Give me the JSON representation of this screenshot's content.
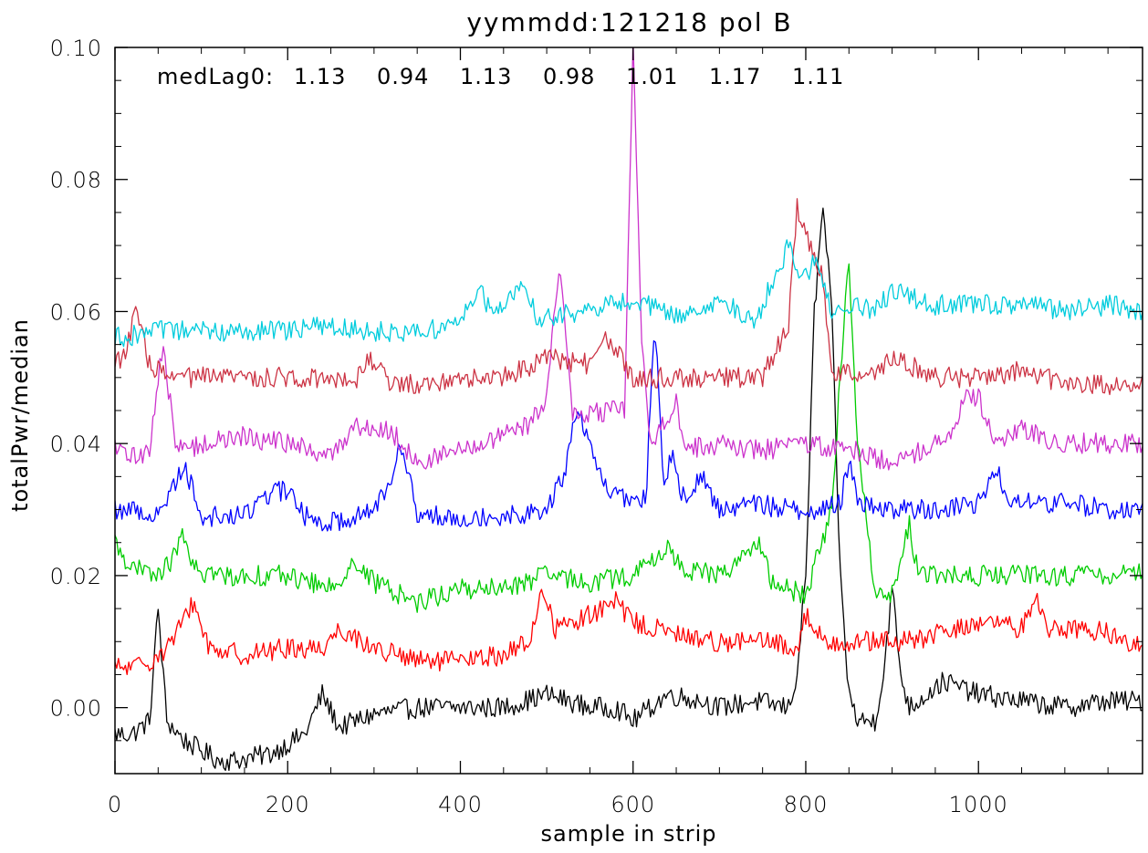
{
  "chart_data": {
    "type": "line",
    "title": "yymmdd:121218 pol B",
    "xlabel": "sample in strip",
    "ylabel": "totalPwr/median",
    "xlim": [
      0,
      1190
    ],
    "ylim": [
      -0.01,
      0.1
    ],
    "xticks": [
      0,
      200,
      400,
      600,
      800,
      1000
    ],
    "xtick_labels": [
      "0",
      "200",
      "400",
      "600",
      "800",
      "1000"
    ],
    "yticks": [
      0.0,
      0.02,
      0.04,
      0.06,
      0.08,
      0.1
    ],
    "ytick_labels": [
      "0.00",
      "0.02",
      "0.04",
      "0.06",
      "0.08",
      "0.10"
    ],
    "grid": false,
    "annotation": {
      "label": "medLag0:",
      "values": [
        "1.13",
        "0.94",
        "1.13",
        "0.98",
        "1.01",
        "1.17",
        "1.11"
      ]
    },
    "series": [
      {
        "color": "#000000",
        "x": [
          0,
          20,
          40,
          50,
          60,
          80,
          120,
          140,
          180,
          220,
          240,
          260,
          300,
          350,
          400,
          450,
          500,
          550,
          580,
          600,
          620,
          640,
          680,
          700,
          740,
          780,
          790,
          800,
          810,
          820,
          830,
          840,
          850,
          860,
          880,
          890,
          900,
          910,
          920,
          940,
          960,
          1000,
          1050,
          1100,
          1150,
          1190
        ],
        "y": [
          -0.004,
          -0.004,
          -0.002,
          0.015,
          -0.002,
          -0.005,
          -0.008,
          -0.008,
          -0.007,
          -0.004,
          0.002,
          -0.003,
          -0.001,
          0.0,
          0.0,
          0.0,
          0.002,
          0.0,
          0.0,
          -0.002,
          0.0,
          0.002,
          0.001,
          0.0,
          0.001,
          0.0,
          0.005,
          0.02,
          0.06,
          0.076,
          0.06,
          0.02,
          0.002,
          -0.002,
          -0.002,
          0.005,
          0.018,
          0.005,
          0.0,
          0.002,
          0.004,
          0.002,
          0.001,
          0.0,
          0.001,
          0.001
        ]
      },
      {
        "color": "#ff0000",
        "x": [
          0,
          20,
          40,
          60,
          75,
          90,
          110,
          150,
          200,
          240,
          260,
          300,
          350,
          400,
          450,
          480,
          495,
          510,
          550,
          580,
          600,
          650,
          700,
          750,
          790,
          800,
          820,
          850,
          880,
          920,
          980,
          1000,
          1050,
          1065,
          1080,
          1120,
          1160,
          1190
        ],
        "y": [
          0.006,
          0.006,
          0.007,
          0.009,
          0.012,
          0.016,
          0.009,
          0.008,
          0.009,
          0.009,
          0.012,
          0.009,
          0.007,
          0.007,
          0.008,
          0.01,
          0.018,
          0.012,
          0.014,
          0.016,
          0.013,
          0.011,
          0.01,
          0.01,
          0.009,
          0.014,
          0.01,
          0.01,
          0.01,
          0.01,
          0.012,
          0.013,
          0.012,
          0.017,
          0.012,
          0.012,
          0.011,
          0.009
        ]
      },
      {
        "color": "#00cc00",
        "x": [
          0,
          20,
          50,
          70,
          75,
          90,
          120,
          200,
          250,
          275,
          300,
          350,
          400,
          450,
          500,
          550,
          600,
          640,
          660,
          700,
          745,
          760,
          800,
          830,
          840,
          850,
          860,
          880,
          900,
          910,
          920,
          930,
          950,
          1000,
          1050,
          1100,
          1150,
          1190
        ],
        "y": [
          0.025,
          0.021,
          0.02,
          0.023,
          0.027,
          0.021,
          0.02,
          0.02,
          0.018,
          0.022,
          0.019,
          0.016,
          0.018,
          0.018,
          0.02,
          0.019,
          0.02,
          0.024,
          0.021,
          0.02,
          0.025,
          0.019,
          0.017,
          0.03,
          0.05,
          0.068,
          0.04,
          0.018,
          0.017,
          0.022,
          0.028,
          0.02,
          0.02,
          0.02,
          0.02,
          0.02,
          0.02,
          0.021
        ]
      },
      {
        "color": "#0000ff",
        "x": [
          0,
          20,
          50,
          80,
          100,
          150,
          170,
          200,
          220,
          250,
          300,
          320,
          330,
          350,
          400,
          450,
          500,
          520,
          535,
          550,
          570,
          600,
          615,
          625,
          635,
          645,
          660,
          680,
          700,
          740,
          780,
          800,
          820,
          840,
          850,
          860,
          880,
          920,
          960,
          1000,
          1020,
          1040,
          1100,
          1150,
          1190
        ],
        "y": [
          0.03,
          0.03,
          0.029,
          0.037,
          0.029,
          0.029,
          0.032,
          0.033,
          0.029,
          0.028,
          0.03,
          0.035,
          0.041,
          0.029,
          0.029,
          0.029,
          0.03,
          0.035,
          0.046,
          0.039,
          0.033,
          0.031,
          0.032,
          0.059,
          0.034,
          0.038,
          0.031,
          0.035,
          0.03,
          0.031,
          0.03,
          0.03,
          0.03,
          0.031,
          0.037,
          0.032,
          0.03,
          0.03,
          0.03,
          0.031,
          0.036,
          0.031,
          0.031,
          0.03,
          0.03
        ]
      },
      {
        "color": "#cc33cc",
        "x": [
          0,
          20,
          40,
          55,
          70,
          80,
          100,
          150,
          200,
          250,
          280,
          300,
          320,
          350,
          400,
          450,
          480,
          500,
          515,
          530,
          570,
          590,
          600,
          610,
          620,
          640,
          650,
          660,
          700,
          750,
          800,
          850,
          880,
          900,
          950,
          970,
          985,
          1000,
          1020,
          1050,
          1100,
          1150,
          1190
        ],
        "y": [
          0.039,
          0.038,
          0.039,
          0.055,
          0.04,
          0.039,
          0.04,
          0.041,
          0.04,
          0.038,
          0.043,
          0.042,
          0.042,
          0.037,
          0.039,
          0.041,
          0.043,
          0.047,
          0.068,
          0.044,
          0.045,
          0.045,
          0.1,
          0.055,
          0.04,
          0.044,
          0.047,
          0.039,
          0.04,
          0.039,
          0.04,
          0.039,
          0.038,
          0.037,
          0.04,
          0.042,
          0.048,
          0.047,
          0.04,
          0.042,
          0.04,
          0.04,
          0.04
        ]
      },
      {
        "color": "#cc3344",
        "x": [
          0,
          10,
          25,
          40,
          60,
          100,
          150,
          200,
          250,
          280,
          295,
          320,
          350,
          400,
          450,
          500,
          550,
          570,
          600,
          650,
          700,
          750,
          780,
          790,
          800,
          810,
          820,
          830,
          840,
          860,
          880,
          900,
          950,
          1000,
          1050,
          1100,
          1150,
          1190
        ],
        "y": [
          0.053,
          0.053,
          0.06,
          0.052,
          0.05,
          0.05,
          0.05,
          0.05,
          0.05,
          0.05,
          0.053,
          0.049,
          0.049,
          0.05,
          0.05,
          0.053,
          0.052,
          0.056,
          0.05,
          0.05,
          0.05,
          0.05,
          0.058,
          0.076,
          0.072,
          0.068,
          0.065,
          0.05,
          0.051,
          0.05,
          0.051,
          0.053,
          0.05,
          0.05,
          0.051,
          0.049,
          0.049,
          0.049
        ]
      },
      {
        "color": "#00ccdd",
        "x": [
          0,
          50,
          100,
          150,
          200,
          250,
          300,
          350,
          400,
          420,
          440,
          470,
          490,
          550,
          600,
          650,
          700,
          740,
          780,
          790,
          800,
          810,
          830,
          850,
          880,
          900,
          950,
          1000,
          1050,
          1100,
          1150,
          1190
        ],
        "y": [
          0.056,
          0.057,
          0.057,
          0.057,
          0.057,
          0.058,
          0.057,
          0.057,
          0.058,
          0.064,
          0.059,
          0.064,
          0.059,
          0.06,
          0.062,
          0.059,
          0.062,
          0.058,
          0.07,
          0.065,
          0.065,
          0.068,
          0.06,
          0.061,
          0.06,
          0.063,
          0.061,
          0.061,
          0.061,
          0.06,
          0.061,
          0.06
        ]
      }
    ]
  }
}
